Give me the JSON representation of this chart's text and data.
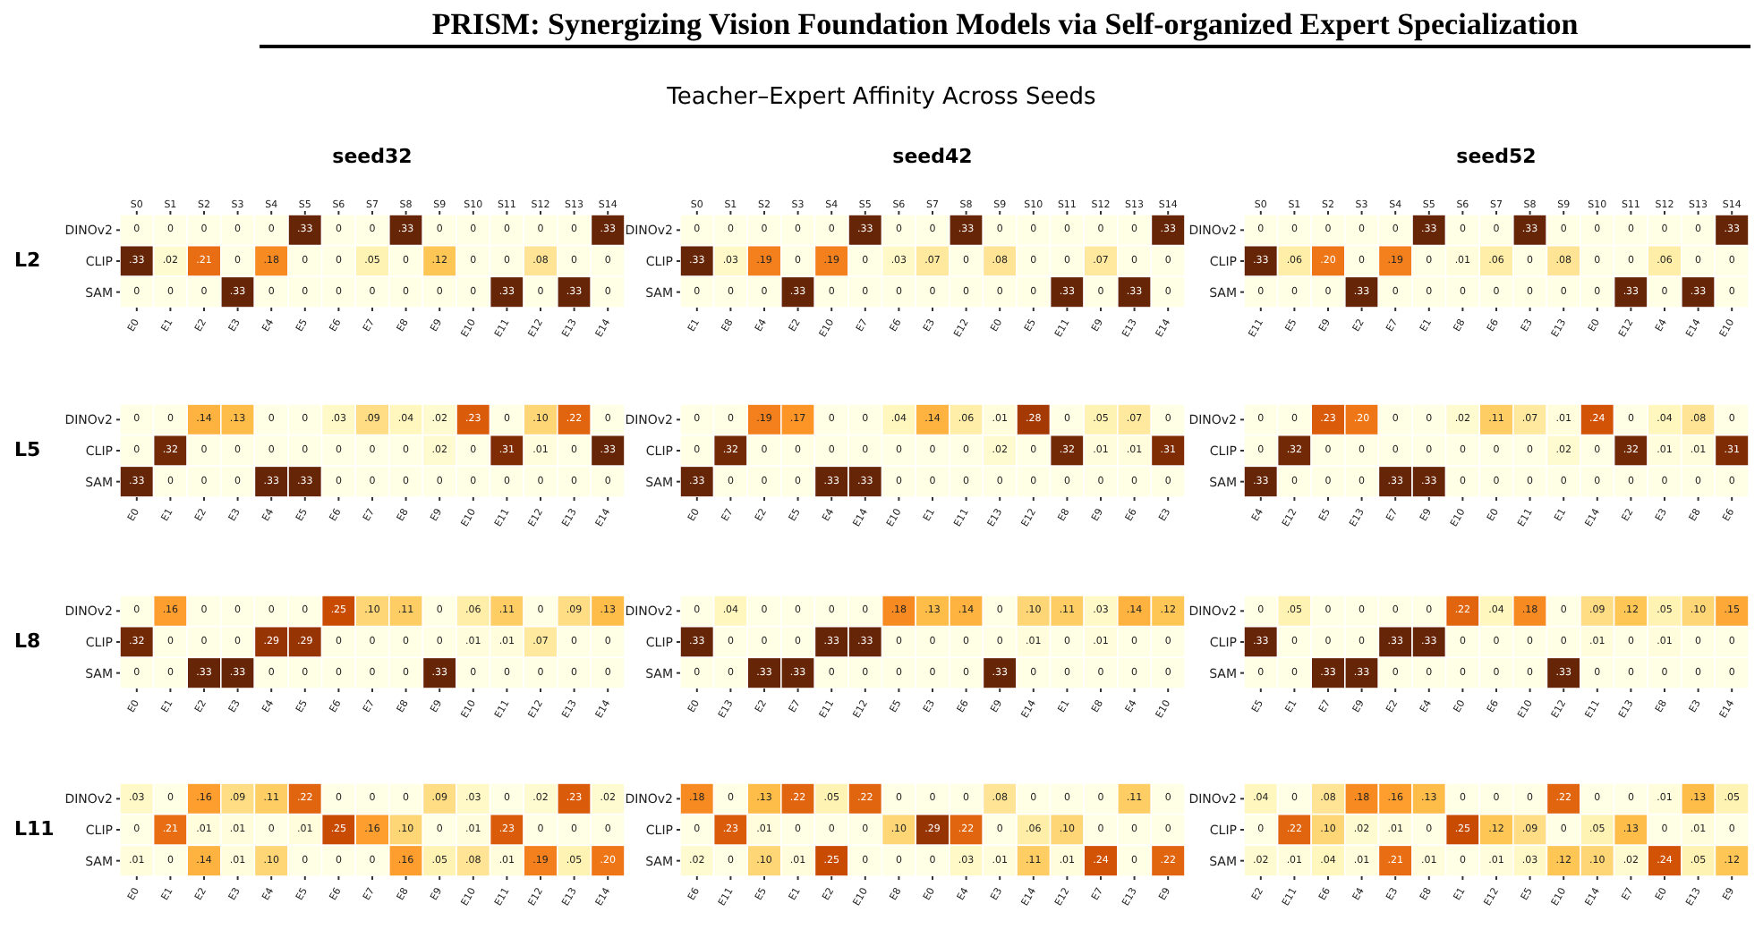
{
  "chart_data": [
    {
      "type": "heatmap",
      "title": "seed32",
      "ylabel": "L2",
      "annotations": [
        "PRISM: Synergizing Vision Foundation Models via Self-organized Expert Specialization",
        "Teacher–Expert Affinity Across Seeds",
        "S0",
        "S1",
        "S2",
        "S3",
        "S4",
        "S5",
        "S6",
        "S7",
        "S8",
        "S9",
        "S10",
        "S11",
        "S12",
        "S13",
        "S14"
      ],
      "categories": [
        "E0",
        "E1",
        "E2",
        "E3",
        "E4",
        "E5",
        "E6",
        "E7",
        "E8",
        "E9",
        "E10",
        "E11",
        "E12",
        "E13",
        "E14"
      ],
      "y_categories": [
        "DINOv2",
        "CLIP",
        "SAM"
      ],
      "cells": [
        [
          0,
          0,
          0,
          0,
          0,
          0.33,
          0,
          0,
          0.33,
          0,
          0,
          0,
          0,
          0,
          0.33
        ],
        [
          0.33,
          0.02,
          0.21,
          0,
          0.18,
          0,
          0,
          0.05,
          0,
          0.12,
          0,
          0,
          0.08,
          0,
          0
        ],
        [
          0,
          0,
          0,
          0.33,
          0,
          0,
          0,
          0,
          0,
          0,
          0,
          0.33,
          0,
          0.33,
          0
        ]
      ],
      "cell_labels": [
        [
          "0",
          "0",
          "0",
          "0",
          "0",
          ".33",
          "0",
          "0",
          ".33",
          "0",
          "0",
          "0",
          "0",
          "0",
          ".33"
        ],
        [
          ".33",
          ".02",
          ".21",
          "0",
          ".18",
          "0",
          "0",
          ".05",
          "0",
          ".12",
          "0",
          "0",
          ".08",
          "0",
          "0"
        ],
        [
          "0",
          "0",
          "0",
          ".33",
          "0",
          "0",
          "0",
          "0",
          "0",
          "0",
          "0",
          ".33",
          "0",
          ".33",
          "0"
        ]
      ]
    },
    {
      "type": "heatmap",
      "title": "seed42",
      "annotations": [
        "S0",
        "S1",
        "S2",
        "S3",
        "S4",
        "S5",
        "S6",
        "S7",
        "S8",
        "S9",
        "S10",
        "S11",
        "S12",
        "S13",
        "S14"
      ],
      "categories": [
        "E1",
        "E8",
        "E4",
        "E2",
        "E10",
        "E7",
        "E6",
        "E3",
        "E12",
        "E0",
        "E5",
        "E11",
        "E9",
        "E13",
        "E14"
      ],
      "y_categories": [
        "DINOv2",
        "CLIP",
        "SAM"
      ],
      "cells": [
        [
          0,
          0,
          0,
          0,
          0,
          0.33,
          0,
          0,
          0.33,
          0,
          0,
          0,
          0,
          0,
          0.33
        ],
        [
          0.33,
          0.03,
          0.19,
          0,
          0.19,
          0,
          0.03,
          0.07,
          0,
          0.08,
          0,
          0,
          0.07,
          0,
          0
        ],
        [
          0,
          0,
          0,
          0.33,
          0,
          0,
          0,
          0,
          0,
          0,
          0,
          0.33,
          0,
          0.33,
          0
        ]
      ],
      "cell_labels": [
        [
          "0",
          "0",
          "0",
          "0",
          "0",
          ".33",
          "0",
          "0",
          ".33",
          "0",
          "0",
          "0",
          "0",
          "0",
          ".33"
        ],
        [
          ".33",
          ".03",
          ".19",
          "0",
          ".19",
          "0",
          ".03",
          ".07",
          "0",
          ".08",
          "0",
          "0",
          ".07",
          "0",
          "0"
        ],
        [
          "0",
          "0",
          "0",
          ".33",
          "0",
          "0",
          "0",
          "0",
          "0",
          "0",
          "0",
          ".33",
          "0",
          ".33",
          "0"
        ]
      ]
    },
    {
      "type": "heatmap",
      "title": "seed52",
      "annotations": [
        "S0",
        "S1",
        "S2",
        "S3",
        "S4",
        "S5",
        "S6",
        "S7",
        "S8",
        "S9",
        "S10",
        "S11",
        "S12",
        "S13",
        "S14"
      ],
      "categories": [
        "E11",
        "E5",
        "E9",
        "E2",
        "E7",
        "E1",
        "E8",
        "E6",
        "E3",
        "E13",
        "E0",
        "E12",
        "E4",
        "E14",
        "E10"
      ],
      "y_categories": [
        "DINOv2",
        "CLIP",
        "SAM"
      ],
      "cells": [
        [
          0,
          0,
          0,
          0,
          0,
          0.33,
          0,
          0,
          0.33,
          0,
          0,
          0,
          0,
          0,
          0.33
        ],
        [
          0.33,
          0.06,
          0.2,
          0,
          0.19,
          0,
          0.01,
          0.06,
          0,
          0.08,
          0,
          0,
          0.06,
          0,
          0
        ],
        [
          0,
          0,
          0,
          0.33,
          0,
          0,
          0,
          0,
          0,
          0,
          0,
          0.33,
          0,
          0.33,
          0
        ]
      ],
      "cell_labels": [
        [
          "0",
          "0",
          "0",
          "0",
          "0",
          ".33",
          "0",
          "0",
          ".33",
          "0",
          "0",
          "0",
          "0",
          "0",
          ".33"
        ],
        [
          ".33",
          ".06",
          ".20",
          "0",
          ".19",
          "0",
          ".01",
          ".06",
          "0",
          ".08",
          "0",
          "0",
          ".06",
          "0",
          "0"
        ],
        [
          "0",
          "0",
          "0",
          ".33",
          "0",
          "0",
          "0",
          "0",
          "0",
          "0",
          "0",
          ".33",
          "0",
          ".33",
          "0"
        ]
      ]
    },
    {
      "type": "heatmap",
      "ylabel": "L5",
      "categories": [
        "E0",
        "E1",
        "E2",
        "E3",
        "E4",
        "E5",
        "E6",
        "E7",
        "E8",
        "E9",
        "E10",
        "E11",
        "E12",
        "E13",
        "E14"
      ],
      "y_categories": [
        "DINOv2",
        "CLIP",
        "SAM"
      ],
      "cells": [
        [
          0,
          0,
          0.14,
          0.13,
          0,
          0,
          0.03,
          0.09,
          0.04,
          0.02,
          0.23,
          0,
          0.1,
          0.22,
          0
        ],
        [
          0,
          0.32,
          0,
          0,
          0,
          0,
          0,
          0,
          0,
          0.02,
          0,
          0.31,
          0.01,
          0,
          0.33
        ],
        [
          0.33,
          0,
          0,
          0,
          0.33,
          0.33,
          0,
          0,
          0,
          0,
          0,
          0,
          0,
          0,
          0
        ]
      ],
      "cell_labels": [
        [
          "0",
          "0",
          ".14",
          ".13",
          "0",
          "0",
          ".03",
          ".09",
          ".04",
          ".02",
          ".23",
          "0",
          ".10",
          ".22",
          "0"
        ],
        [
          "0",
          ".32",
          "0",
          "0",
          "0",
          "0",
          "0",
          "0",
          "0",
          ".02",
          "0",
          ".31",
          ".01",
          "0",
          ".33"
        ],
        [
          ".33",
          "0",
          "0",
          "0",
          ".33",
          ".33",
          "0",
          "0",
          "0",
          "0",
          "0",
          "0",
          "0",
          "0",
          "0"
        ]
      ]
    },
    {
      "type": "heatmap",
      "categories": [
        "E0",
        "E7",
        "E2",
        "E5",
        "E4",
        "E14",
        "E10",
        "E1",
        "E11",
        "E13",
        "E12",
        "E8",
        "E9",
        "E6",
        "E3"
      ],
      "y_categories": [
        "DINOv2",
        "CLIP",
        "SAM"
      ],
      "cells": [
        [
          0,
          0,
          0.19,
          0.17,
          0,
          0,
          0.04,
          0.14,
          0.06,
          0.01,
          0.28,
          0,
          0.05,
          0.07,
          0
        ],
        [
          0,
          0.32,
          0,
          0,
          0,
          0,
          0,
          0,
          0,
          0.02,
          0,
          0.32,
          0.01,
          0.01,
          0.31
        ],
        [
          0.33,
          0,
          0,
          0,
          0.33,
          0.33,
          0,
          0,
          0,
          0,
          0,
          0,
          0,
          0,
          0
        ]
      ],
      "cell_labels": [
        [
          "0",
          "0",
          ".19",
          ".17",
          "0",
          "0",
          ".04",
          ".14",
          ".06",
          ".01",
          ".28",
          "0",
          ".05",
          ".07",
          "0"
        ],
        [
          "0",
          ".32",
          "0",
          "0",
          "0",
          "0",
          "0",
          "0",
          "0",
          ".02",
          "0",
          ".32",
          ".01",
          ".01",
          ".31"
        ],
        [
          ".33",
          "0",
          "0",
          "0",
          ".33",
          ".33",
          "0",
          "0",
          "0",
          "0",
          "0",
          "0",
          "0",
          "0",
          "0"
        ]
      ]
    },
    {
      "type": "heatmap",
      "categories": [
        "E4",
        "E12",
        "E5",
        "E13",
        "E7",
        "E9",
        "E10",
        "E0",
        "E11",
        "E1",
        "E14",
        "E2",
        "E3",
        "E8",
        "E6"
      ],
      "y_categories": [
        "DINOv2",
        "CLIP",
        "SAM"
      ],
      "cells": [
        [
          0,
          0,
          0.23,
          0.2,
          0,
          0,
          0.02,
          0.11,
          0.07,
          0.01,
          0.24,
          0,
          0.04,
          0.08,
          0
        ],
        [
          0,
          0.32,
          0,
          0,
          0,
          0,
          0,
          0,
          0,
          0.02,
          0,
          0.32,
          0.01,
          0.01,
          0.31
        ],
        [
          0.33,
          0,
          0,
          0,
          0.33,
          0.33,
          0,
          0,
          0,
          0,
          0,
          0,
          0,
          0,
          0
        ]
      ],
      "cell_labels": [
        [
          "0",
          "0",
          ".23",
          ".20",
          "0",
          "0",
          ".02",
          ".11",
          ".07",
          ".01",
          ".24",
          "0",
          ".04",
          ".08",
          "0"
        ],
        [
          "0",
          ".32",
          "0",
          "0",
          "0",
          "0",
          "0",
          "0",
          "0",
          ".02",
          "0",
          ".32",
          ".01",
          ".01",
          ".31"
        ],
        [
          ".33",
          "0",
          "0",
          "0",
          ".33",
          ".33",
          "0",
          "0",
          "0",
          "0",
          "0",
          "0",
          "0",
          "0",
          "0"
        ]
      ]
    },
    {
      "type": "heatmap",
      "ylabel": "L8",
      "categories": [
        "E0",
        "E1",
        "E2",
        "E3",
        "E4",
        "E5",
        "E6",
        "E7",
        "E8",
        "E9",
        "E10",
        "E11",
        "E12",
        "E13",
        "E14"
      ],
      "y_categories": [
        "DINOv2",
        "CLIP",
        "SAM"
      ],
      "cells": [
        [
          0,
          0.16,
          0,
          0,
          0,
          0,
          0.25,
          0.1,
          0.11,
          0,
          0.06,
          0.11,
          0,
          0.09,
          0.13
        ],
        [
          0.32,
          0,
          0,
          0,
          0.29,
          0.29,
          0,
          0,
          0,
          0,
          0.01,
          0.01,
          0.07,
          0,
          0
        ],
        [
          0,
          0,
          0.33,
          0.33,
          0,
          0,
          0,
          0,
          0,
          0.33,
          0,
          0,
          0,
          0,
          0
        ]
      ],
      "cell_labels": [
        [
          "0",
          ".16",
          "0",
          "0",
          "0",
          "0",
          ".25",
          ".10",
          ".11",
          "0",
          ".06",
          ".11",
          "0",
          ".09",
          ".13"
        ],
        [
          ".32",
          "0",
          "0",
          "0",
          ".29",
          ".29",
          "0",
          "0",
          "0",
          "0",
          ".01",
          ".01",
          ".07",
          "0",
          "0"
        ],
        [
          "0",
          "0",
          ".33",
          ".33",
          "0",
          "0",
          "0",
          "0",
          "0",
          ".33",
          "0",
          "0",
          "0",
          "0",
          "0"
        ]
      ]
    },
    {
      "type": "heatmap",
      "categories": [
        "E0",
        "E13",
        "E2",
        "E7",
        "E11",
        "E12",
        "E5",
        "E3",
        "E6",
        "E9",
        "E14",
        "E1",
        "E8",
        "E4",
        "E10"
      ],
      "y_categories": [
        "DINOv2",
        "CLIP",
        "SAM"
      ],
      "cells": [
        [
          0,
          0.04,
          0,
          0,
          0,
          0,
          0.18,
          0.13,
          0.14,
          0,
          0.1,
          0.11,
          0.03,
          0.14,
          0.12
        ],
        [
          0.33,
          0,
          0,
          0,
          0.33,
          0.33,
          0,
          0,
          0,
          0,
          0.01,
          0,
          0.01,
          0,
          0
        ],
        [
          0,
          0,
          0.33,
          0.33,
          0,
          0,
          0,
          0,
          0,
          0.33,
          0,
          0,
          0,
          0,
          0
        ]
      ],
      "cell_labels": [
        [
          "0",
          ".04",
          "0",
          "0",
          "0",
          "0",
          ".18",
          ".13",
          ".14",
          "0",
          ".10",
          ".11",
          ".03",
          ".14",
          ".12"
        ],
        [
          ".33",
          "0",
          "0",
          "0",
          ".33",
          ".33",
          "0",
          "0",
          "0",
          "0",
          ".01",
          "0",
          ".01",
          "0",
          "0"
        ],
        [
          "0",
          "0",
          ".33",
          ".33",
          "0",
          "0",
          "0",
          "0",
          "0",
          ".33",
          "0",
          "0",
          "0",
          "0",
          "0"
        ]
      ]
    },
    {
      "type": "heatmap",
      "categories": [
        "E5",
        "E1",
        "E7",
        "E9",
        "E2",
        "E4",
        "E0",
        "E6",
        "E10",
        "E12",
        "E11",
        "E13",
        "E8",
        "E3",
        "E14"
      ],
      "y_categories": [
        "DINOv2",
        "CLIP",
        "SAM"
      ],
      "cells": [
        [
          0,
          0.05,
          0,
          0,
          0,
          0,
          0.22,
          0.04,
          0.18,
          0,
          0.09,
          0.12,
          0.05,
          0.1,
          0.15
        ],
        [
          0.33,
          0,
          0,
          0,
          0.33,
          0.33,
          0,
          0,
          0,
          0,
          0.01,
          0,
          0.01,
          0,
          0
        ],
        [
          0,
          0,
          0.33,
          0.33,
          0,
          0,
          0,
          0,
          0,
          0.33,
          0,
          0,
          0,
          0,
          0
        ]
      ],
      "cell_labels": [
        [
          "0",
          ".05",
          "0",
          "0",
          "0",
          "0",
          ".22",
          ".04",
          ".18",
          "0",
          ".09",
          ".12",
          ".05",
          ".10",
          ".15"
        ],
        [
          ".33",
          "0",
          "0",
          "0",
          ".33",
          ".33",
          "0",
          "0",
          "0",
          "0",
          ".01",
          "0",
          ".01",
          "0",
          "0"
        ],
        [
          "0",
          "0",
          ".33",
          ".33",
          "0",
          "0",
          "0",
          "0",
          "0",
          ".33",
          "0",
          "0",
          "0",
          "0",
          "0"
        ]
      ]
    },
    {
      "type": "heatmap",
      "ylabel": "L11",
      "categories": [
        "E0",
        "E1",
        "E2",
        "E3",
        "E4",
        "E5",
        "E6",
        "E7",
        "E8",
        "E9",
        "E10",
        "E11",
        "E12",
        "E13",
        "E14"
      ],
      "y_categories": [
        "DINOv2",
        "CLIP",
        "SAM"
      ],
      "cells": [
        [
          0.03,
          0,
          0.16,
          0.09,
          0.11,
          0.22,
          0,
          0,
          0,
          0.09,
          0.03,
          0,
          0.02,
          0.23,
          0.02
        ],
        [
          0,
          0.21,
          0.01,
          0.01,
          0,
          0.01,
          0.25,
          0.16,
          0.1,
          0,
          0.01,
          0.23,
          0,
          0,
          0
        ],
        [
          0.01,
          0,
          0.14,
          0.01,
          0.1,
          0,
          0,
          0,
          0.16,
          0.05,
          0.08,
          0.01,
          0.19,
          0.05,
          0.2
        ]
      ],
      "cell_labels": [
        [
          ".03",
          "0",
          ".16",
          ".09",
          ".11",
          ".22",
          "0",
          "0",
          "0",
          ".09",
          ".03",
          "0",
          ".02",
          ".23",
          ".02"
        ],
        [
          "0",
          ".21",
          ".01",
          ".01",
          "0",
          ".01",
          ".25",
          ".16",
          ".10",
          "0",
          ".01",
          ".23",
          "0",
          "0",
          "0"
        ],
        [
          ".01",
          "0",
          ".14",
          ".01",
          ".10",
          "0",
          "0",
          "0",
          ".16",
          ".05",
          ".08",
          ".01",
          ".19",
          ".05",
          ".20"
        ]
      ]
    },
    {
      "type": "heatmap",
      "categories": [
        "E6",
        "E11",
        "E5",
        "E1",
        "E2",
        "E10",
        "E8",
        "E0",
        "E4",
        "E3",
        "E14",
        "E12",
        "E7",
        "E13",
        "E9"
      ],
      "y_categories": [
        "DINOv2",
        "CLIP",
        "SAM"
      ],
      "cells": [
        [
          0.18,
          0,
          0.13,
          0.22,
          0.05,
          0.22,
          0,
          0,
          0,
          0.08,
          0,
          0,
          0,
          0.11,
          0
        ],
        [
          0,
          0.23,
          0.01,
          0,
          0,
          0,
          0.1,
          0.29,
          0.22,
          0,
          0.06,
          0.1,
          0,
          0,
          0
        ],
        [
          0.02,
          0,
          0.1,
          0.01,
          0.25,
          0,
          0,
          0,
          0.03,
          0.01,
          0.11,
          0.01,
          0.24,
          0,
          0.22
        ]
      ],
      "cell_labels": [
        [
          ".18",
          "0",
          ".13",
          ".22",
          ".05",
          ".22",
          "0",
          "0",
          "0",
          ".08",
          "0",
          "0",
          "0",
          ".11",
          "0"
        ],
        [
          "0",
          ".23",
          ".01",
          "0",
          "0",
          "0",
          ".10",
          ".29",
          ".22",
          "0",
          ".06",
          ".10",
          "0",
          "0",
          "0"
        ],
        [
          ".02",
          "0",
          ".10",
          ".01",
          ".25",
          "0",
          "0",
          "0",
          ".03",
          ".01",
          ".11",
          ".01",
          ".24",
          "0",
          ".22"
        ]
      ]
    },
    {
      "type": "heatmap",
      "categories": [
        "E2",
        "E11",
        "E6",
        "E4",
        "E3",
        "E8",
        "E1",
        "E12",
        "E5",
        "E10",
        "E14",
        "E7",
        "E0",
        "E13",
        "E9"
      ],
      "y_categories": [
        "DINOv2",
        "CLIP",
        "SAM"
      ],
      "cells": [
        [
          0.04,
          0,
          0.08,
          0.18,
          0.16,
          0.13,
          0,
          0,
          0,
          0.22,
          0,
          0,
          0.01,
          0.13,
          0.05
        ],
        [
          0,
          0.22,
          0.1,
          0.02,
          0.01,
          0,
          0.25,
          0.12,
          0.09,
          0,
          0.05,
          0.13,
          0,
          0.01,
          0
        ],
        [
          0.02,
          0.01,
          0.04,
          0.01,
          0.21,
          0.01,
          0,
          0.01,
          0.03,
          0.12,
          0.1,
          0.02,
          0.24,
          0.05,
          0.12
        ]
      ],
      "cell_labels": [
        [
          ".04",
          "0",
          ".08",
          ".18",
          ".16",
          ".13",
          "0",
          "0",
          "0",
          ".22",
          "0",
          "0",
          ".01",
          ".13",
          ".05"
        ],
        [
          "0",
          ".22",
          ".10",
          ".02",
          ".01",
          "0",
          ".25",
          ".12",
          ".09",
          "0",
          ".05",
          ".13",
          "0",
          ".01",
          "0"
        ],
        [
          ".02",
          ".01",
          ".04",
          ".01",
          ".21",
          ".01",
          "0",
          ".01",
          ".03",
          ".12",
          ".10",
          ".02",
          ".24",
          ".05",
          ".12"
        ]
      ]
    }
  ]
}
